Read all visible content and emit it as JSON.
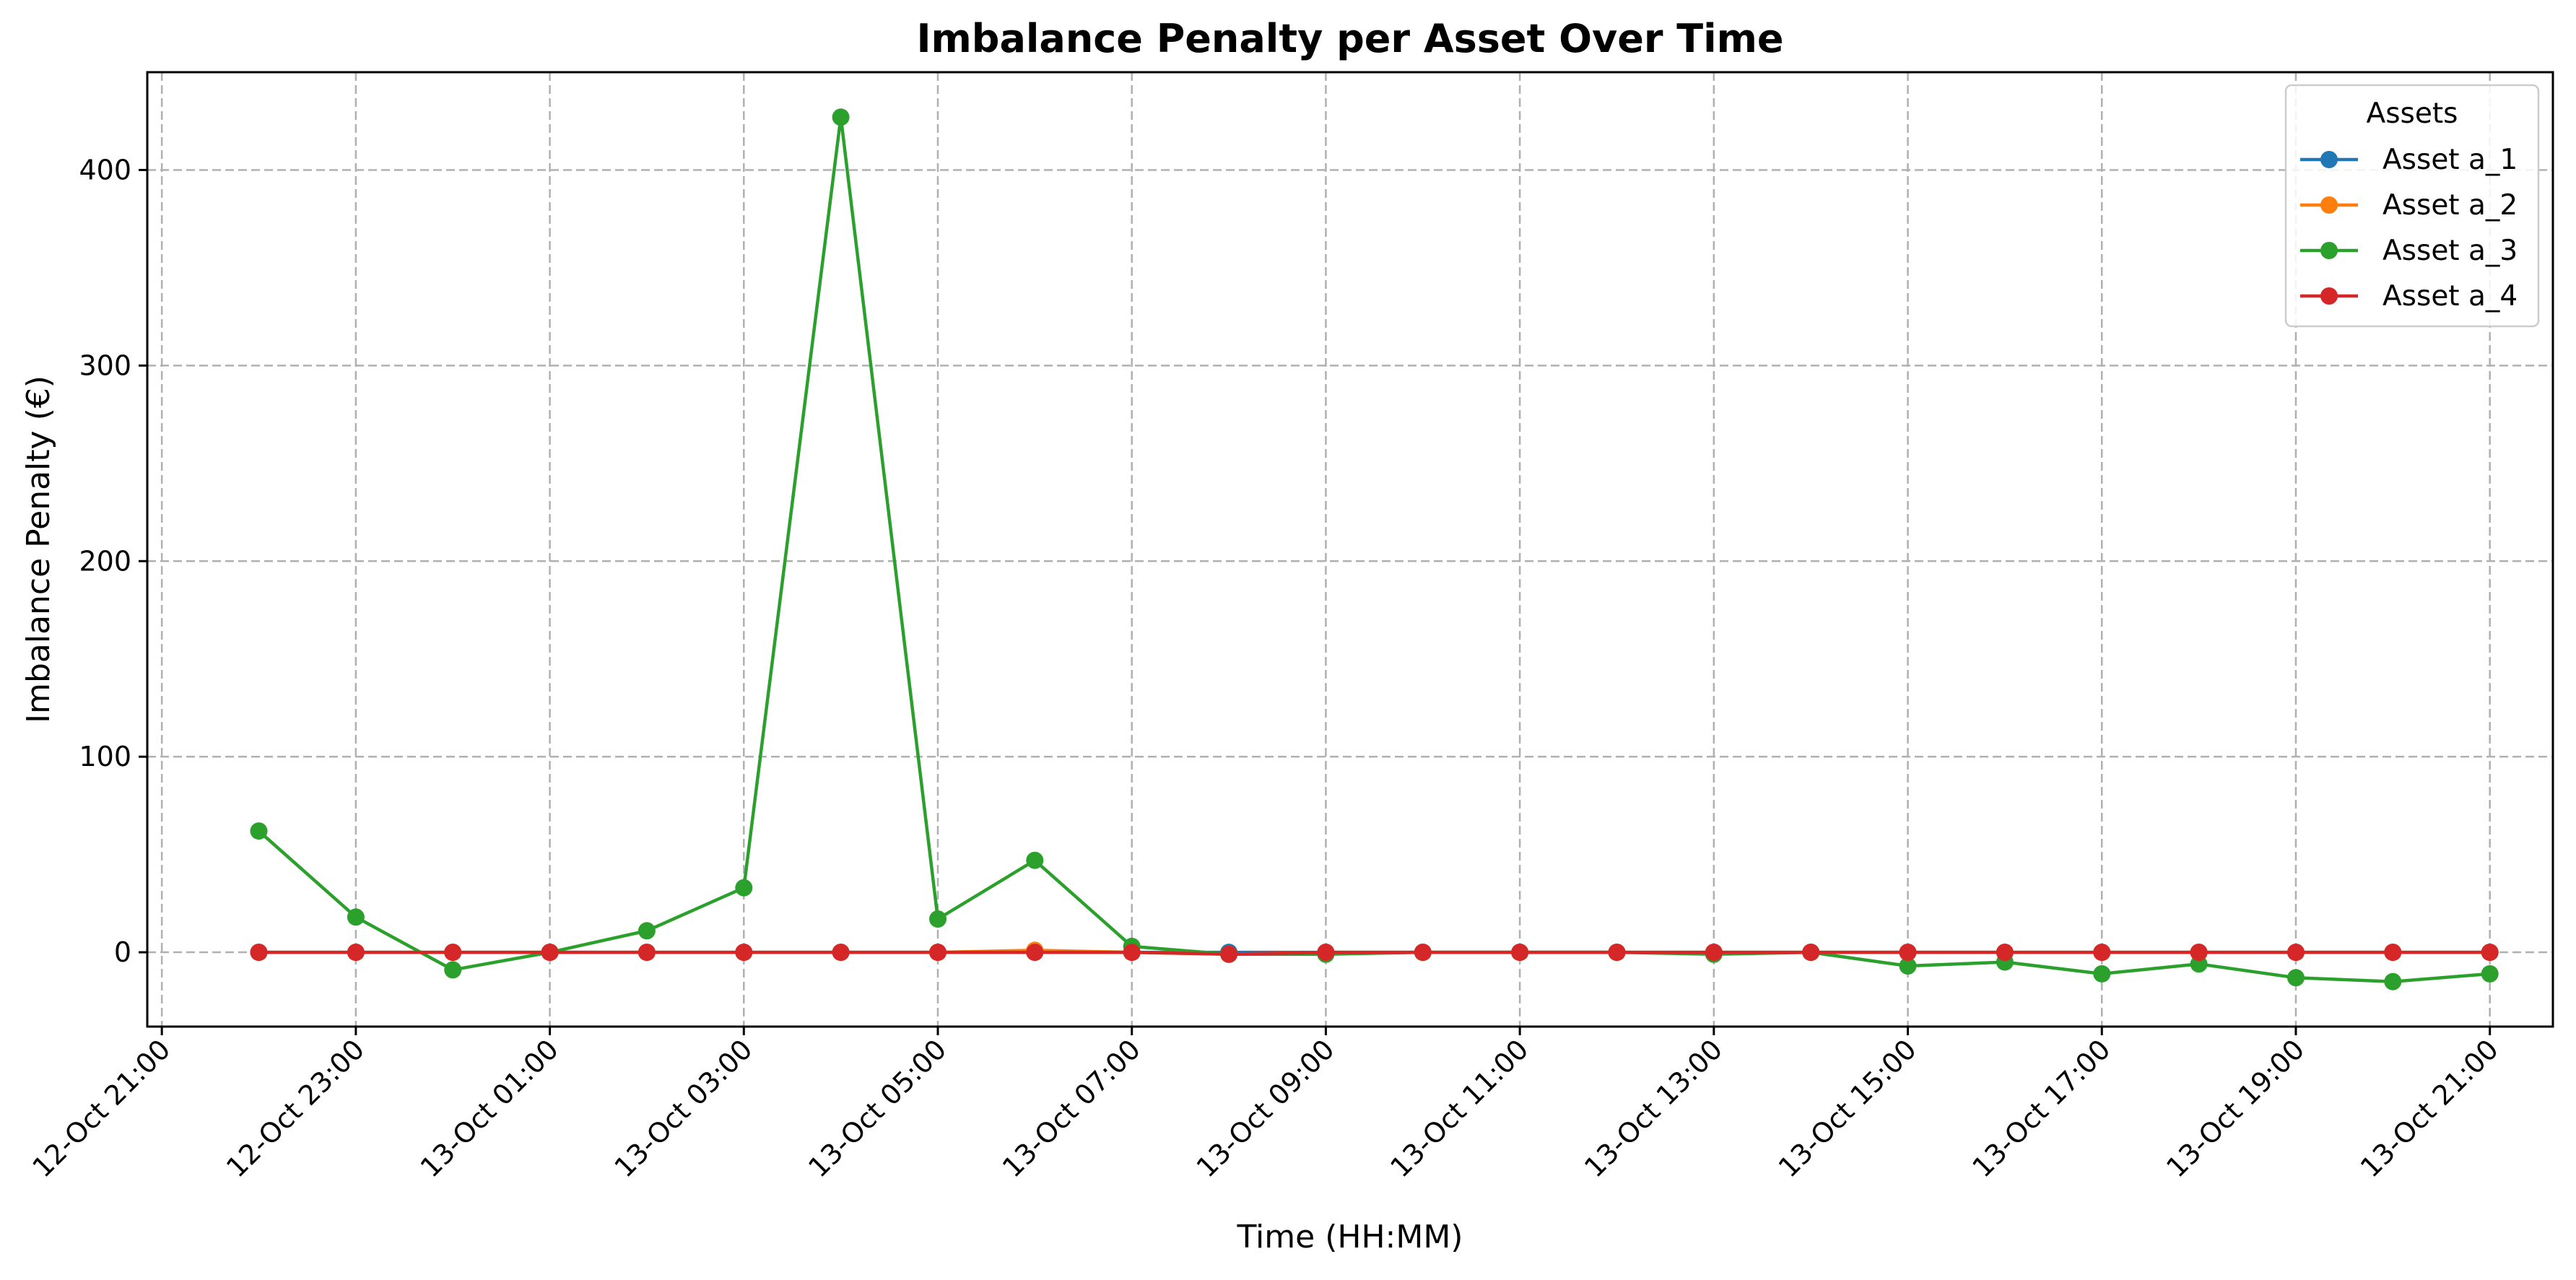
{
  "chart_data": {
    "type": "line",
    "title": "Imbalance Penalty per Asset Over Time",
    "xlabel": "Time (HH:MM)",
    "ylabel": "Imbalance Penalty (€)",
    "ylim": [
      -38,
      450
    ],
    "xlim": [
      "12-Oct 20:51",
      "13-Oct 21:39"
    ],
    "grid": true,
    "legend": {
      "title": "Assets",
      "placement": "top-right"
    },
    "x": [
      "12-Oct 22:00",
      "12-Oct 23:00",
      "13-Oct 00:00",
      "13-Oct 01:00",
      "13-Oct 02:00",
      "13-Oct 03:00",
      "13-Oct 04:00",
      "13-Oct 05:00",
      "13-Oct 06:00",
      "13-Oct 07:00",
      "13-Oct 08:00",
      "13-Oct 09:00",
      "13-Oct 10:00",
      "13-Oct 11:00",
      "13-Oct 12:00",
      "13-Oct 13:00",
      "13-Oct 14:00",
      "13-Oct 15:00",
      "13-Oct 16:00",
      "13-Oct 17:00",
      "13-Oct 18:00",
      "13-Oct 19:00",
      "13-Oct 20:00",
      "13-Oct 21:00"
    ],
    "x_ticks": [
      "12-Oct 21:00",
      "12-Oct 23:00",
      "13-Oct 01:00",
      "13-Oct 03:00",
      "13-Oct 05:00",
      "13-Oct 07:00",
      "13-Oct 09:00",
      "13-Oct 11:00",
      "13-Oct 13:00",
      "13-Oct 15:00",
      "13-Oct 17:00",
      "13-Oct 19:00",
      "13-Oct 21:00"
    ],
    "y_ticks": [
      0,
      100,
      200,
      300,
      400
    ],
    "series": [
      {
        "name": "Asset a_1",
        "color": "#1f77b4",
        "values": [
          0,
          0,
          0,
          0,
          0,
          0,
          0,
          0,
          0,
          0,
          0,
          0,
          0,
          0,
          0,
          0,
          0,
          0,
          0,
          0,
          0,
          0,
          0,
          0
        ]
      },
      {
        "name": "Asset a_2",
        "color": "#ff7f0e",
        "values": [
          0,
          0,
          0,
          0,
          0,
          0,
          0,
          0,
          1,
          0,
          -1,
          0,
          0,
          0,
          0,
          0,
          0,
          0,
          0,
          0,
          0,
          0,
          0,
          0
        ]
      },
      {
        "name": "Asset a_3",
        "color": "#2ca02c",
        "values": [
          62,
          18,
          -9,
          0,
          11,
          33,
          427,
          17,
          47,
          3,
          -1,
          -1,
          0,
          0,
          0,
          -1,
          0,
          -7,
          -5,
          -11,
          -6,
          -13,
          -15,
          -11
        ]
      },
      {
        "name": "Asset a_4",
        "color": "#d62728",
        "values": [
          0,
          0,
          0,
          0,
          0,
          0,
          0,
          0,
          0,
          0,
          -1,
          0,
          0,
          0,
          0,
          0,
          0,
          0,
          0,
          0,
          0,
          0,
          0,
          0
        ]
      }
    ]
  }
}
